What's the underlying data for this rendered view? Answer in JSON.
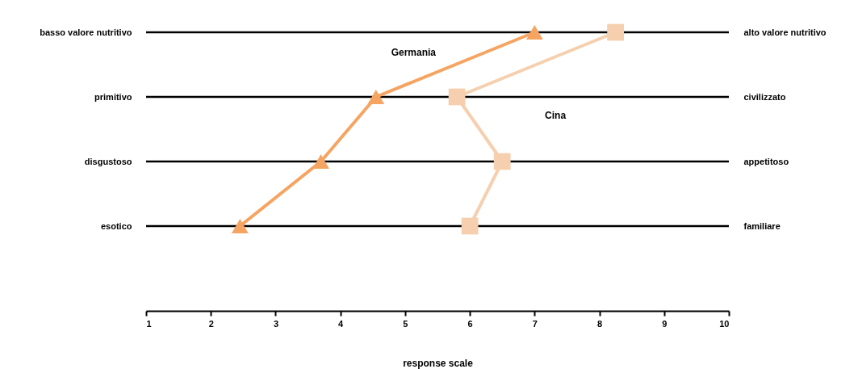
{
  "chart_data": {
    "type": "line",
    "orientation": "horizontal",
    "xlabel": "response scale",
    "categories": [
      "basso valore nutritivo",
      "primitivo",
      "disgustoso",
      "esotico"
    ],
    "y2_categories": [
      "alto valore nutritivo",
      "civilizzato",
      "appetitoso",
      "familiare"
    ],
    "xlim": [
      1,
      10
    ],
    "xticks": [
      1,
      2,
      3,
      4,
      5,
      6,
      7,
      8,
      9,
      10
    ],
    "grid": "y",
    "legend": false,
    "series": [
      {
        "name": "Germania",
        "color": "#f5a462",
        "marker": "triangle",
        "values": [
          7.0,
          4.55,
          3.7,
          2.45
        ]
      },
      {
        "name": "Cina",
        "color": "#f5cfae",
        "marker": "square",
        "values": [
          8.25,
          5.8,
          6.5,
          6.0
        ]
      }
    ]
  }
}
